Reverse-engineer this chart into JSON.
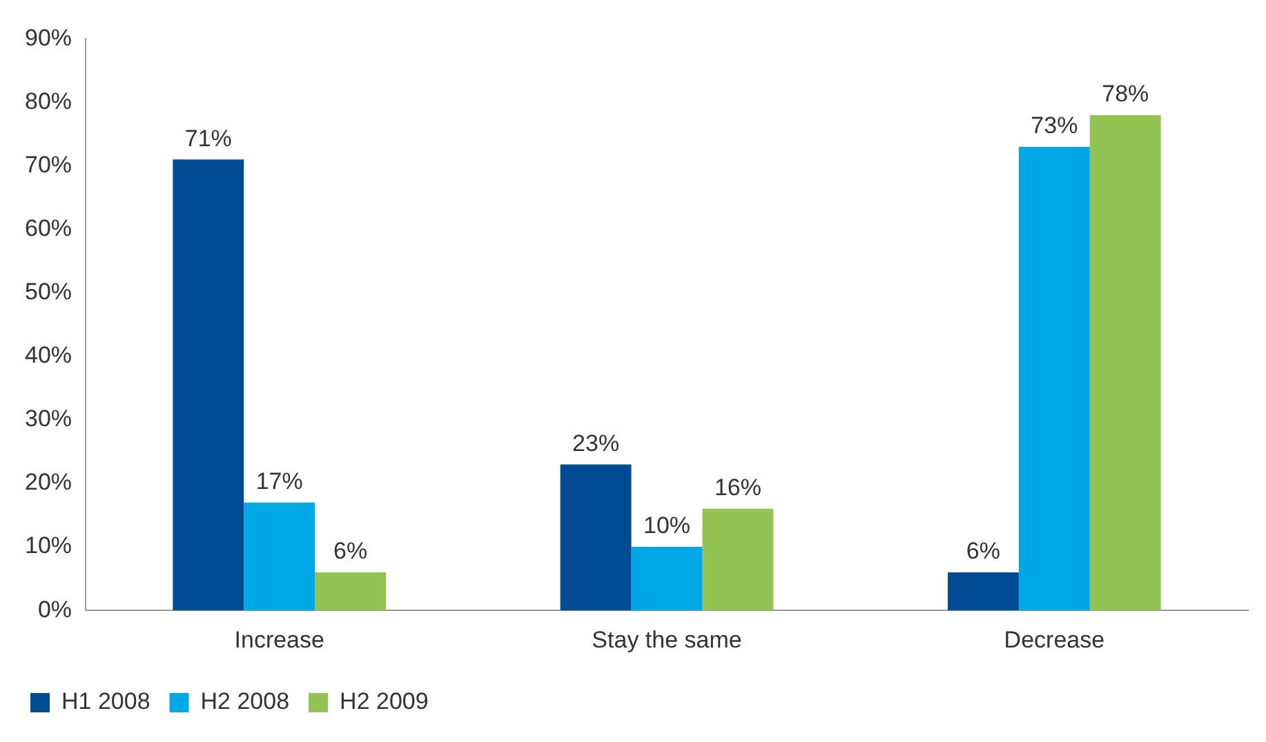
{
  "chart_data": {
    "type": "bar",
    "categories": [
      "Increase",
      "Stay the same",
      "Decrease"
    ],
    "series": [
      {
        "name": "H1 2008",
        "color": "#004b93",
        "values": [
          71,
          23,
          6
        ],
        "value_labels": [
          "71%",
          "23%",
          "6%"
        ]
      },
      {
        "name": "H2 2008",
        "color": "#00a9e6",
        "values": [
          17,
          10,
          73
        ],
        "value_labels": [
          "17%",
          "10%",
          "73%"
        ]
      },
      {
        "name": "H2 2009",
        "color": "#92c353",
        "values": [
          6,
          16,
          78
        ],
        "value_labels": [
          "6%",
          "16%",
          "78%"
        ]
      }
    ],
    "ylim": [
      0,
      90
    ],
    "yticks": [
      {
        "value": 0,
        "label": "0%"
      },
      {
        "value": 10,
        "label": "10%"
      },
      {
        "value": 20,
        "label": "20%"
      },
      {
        "value": 30,
        "label": "30%"
      },
      {
        "value": 40,
        "label": "40%"
      },
      {
        "value": 50,
        "label": "50%"
      },
      {
        "value": 60,
        "label": "60%"
      },
      {
        "value": 70,
        "label": "70%"
      },
      {
        "value": 80,
        "label": "80%"
      },
      {
        "value": 90,
        "label": "90%"
      }
    ],
    "grid": false,
    "legend": "bottom left"
  }
}
